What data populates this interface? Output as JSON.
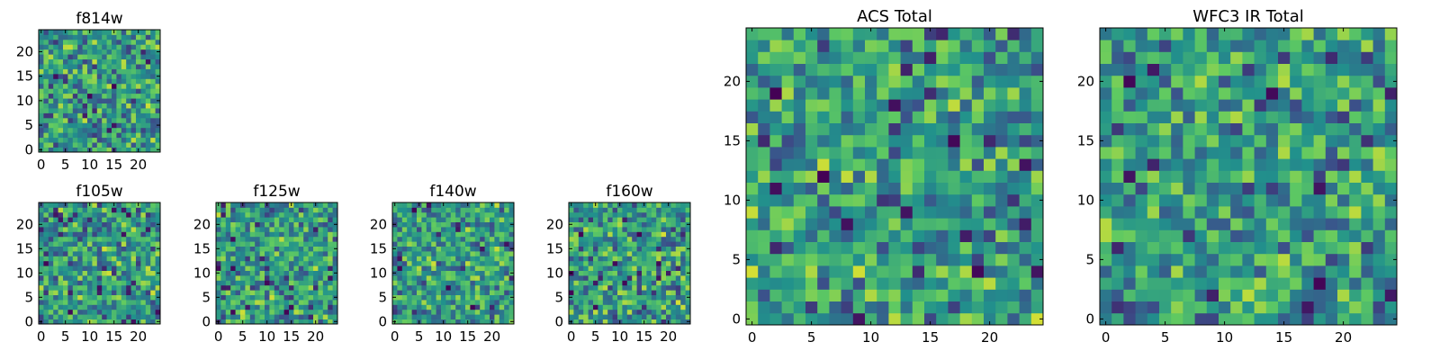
{
  "colormap": [
    "#440154",
    "#3b528b",
    "#21918c",
    "#5ec962",
    "#fde725"
  ],
  "chart_data": [
    {
      "type": "heatmap",
      "title": "f814w",
      "grid_size": 25,
      "xlim": [
        0,
        24
      ],
      "ylim": [
        0,
        24
      ],
      "xticks": [
        0,
        5,
        10,
        15,
        20
      ],
      "yticks": [
        0,
        5,
        10,
        15,
        20
      ],
      "noise_scale": 1,
      "seed": 11
    },
    {
      "type": "heatmap",
      "title": "f105w",
      "grid_size": 25,
      "xlim": [
        0,
        24
      ],
      "ylim": [
        0,
        24
      ],
      "xticks": [
        0,
        5,
        10,
        15,
        20
      ],
      "yticks": [
        0,
        5,
        10,
        15,
        20
      ],
      "noise_scale": 1,
      "seed": 23
    },
    {
      "type": "heatmap",
      "title": "f125w",
      "grid_size": 25,
      "xlim": [
        0,
        24
      ],
      "ylim": [
        0,
        24
      ],
      "xticks": [
        0,
        5,
        10,
        15,
        20
      ],
      "yticks": [
        0,
        5,
        10,
        15,
        20
      ],
      "noise_scale": 1,
      "seed": 37
    },
    {
      "type": "heatmap",
      "title": "f140w",
      "grid_size": 25,
      "xlim": [
        0,
        24
      ],
      "ylim": [
        0,
        24
      ],
      "xticks": [
        0,
        5,
        10,
        15,
        20
      ],
      "yticks": [
        0,
        5,
        10,
        15,
        20
      ],
      "noise_scale": 1,
      "seed": 41
    },
    {
      "type": "heatmap",
      "title": "f160w",
      "grid_size": 25,
      "xlim": [
        0,
        24
      ],
      "ylim": [
        0,
        24
      ],
      "xticks": [
        0,
        5,
        10,
        15,
        20
      ],
      "yticks": [
        0,
        5,
        10,
        15,
        20
      ],
      "noise_scale": 1,
      "seed": 53
    },
    {
      "type": "heatmap",
      "title": "ACS Total",
      "grid_size": 25,
      "xlim": [
        0,
        24
      ],
      "ylim": [
        0,
        24
      ],
      "xticks": [
        0,
        5,
        10,
        15,
        20
      ],
      "yticks": [
        0,
        5,
        10,
        15,
        20
      ],
      "noise_scale": 1,
      "seed": 67
    },
    {
      "type": "heatmap",
      "title": "WFC3 IR Total",
      "grid_size": 25,
      "xlim": [
        0,
        24
      ],
      "ylim": [
        0,
        24
      ],
      "xticks": [
        0,
        5,
        10,
        15,
        20
      ],
      "yticks": [
        0,
        5,
        10,
        15,
        20
      ],
      "noise_scale": 1,
      "seed": 79
    }
  ]
}
